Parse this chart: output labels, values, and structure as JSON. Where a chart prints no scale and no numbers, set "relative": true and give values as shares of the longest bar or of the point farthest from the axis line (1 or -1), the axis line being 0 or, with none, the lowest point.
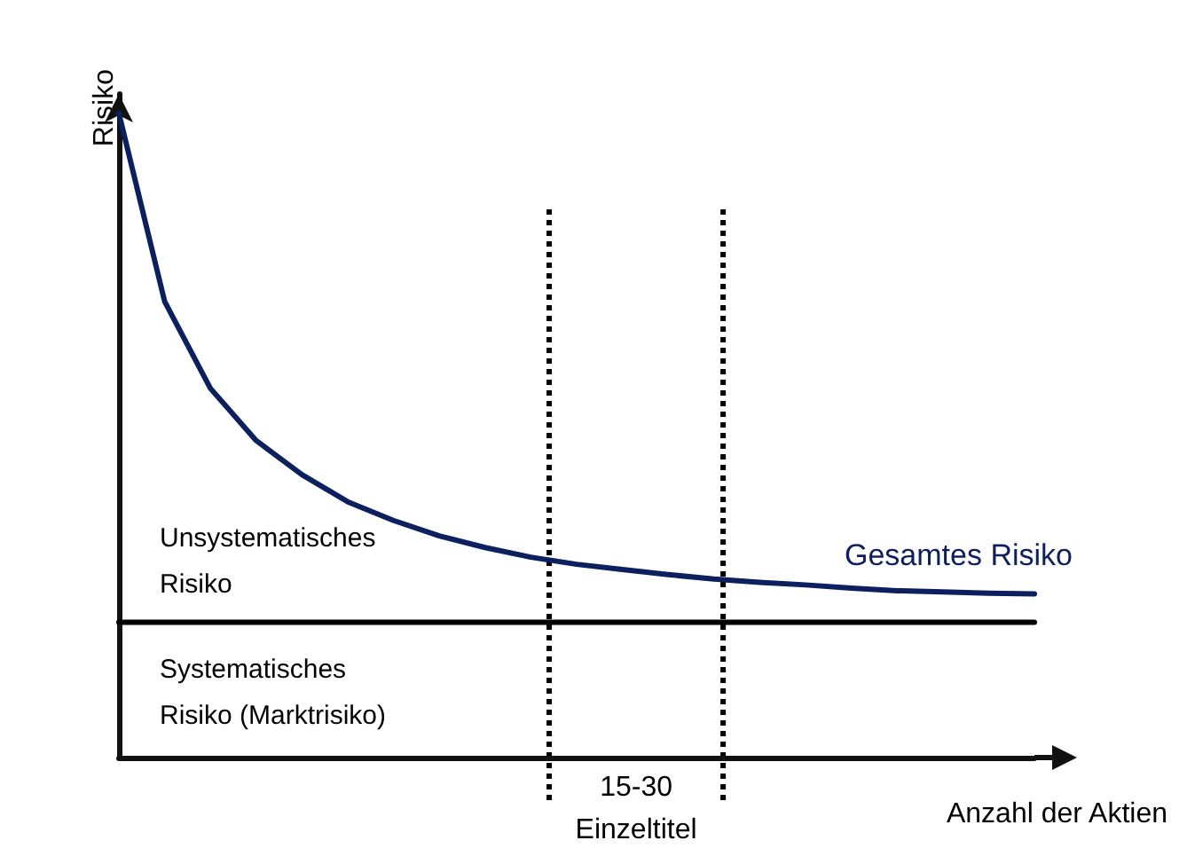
{
  "chart_data": {
    "type": "line",
    "relative": true,
    "ylabel": "Risiko",
    "xlabel": "Anzahl der Aktien",
    "grid": false,
    "legend": false,
    "marker": "none",
    "line_style": "solid",
    "categories": [
      null,
      null,
      null,
      null,
      null,
      null,
      null,
      null,
      null,
      null,
      null,
      null,
      null,
      null,
      null,
      null,
      null,
      null,
      null,
      null,
      null
    ],
    "series": [
      {
        "name": "Gesamtes Risiko",
        "color": "#0c1f5e",
        "values": [
          1.0,
          0.708,
          0.573,
          0.492,
          0.439,
          0.397,
          0.368,
          0.344,
          0.326,
          0.311,
          0.3,
          0.292,
          0.284,
          0.277,
          0.272,
          0.268,
          0.263,
          0.259,
          0.257,
          0.255,
          0.254
        ]
      },
      {
        "color": "#000000",
        "values": [
          0.21,
          0.21,
          0.21,
          0.21,
          0.21,
          0.21,
          0.21,
          0.21,
          0.21,
          0.21,
          0.21,
          0.21,
          0.21,
          0.21,
          0.21,
          0.21,
          0.21,
          0.21,
          0.21,
          0.21,
          0.21
        ]
      }
    ],
    "annotations": [
      "Unsystematisches\nRisiko",
      "Systematisches\nRisiko (Marktrisiko)",
      "15-30\nEinzeltitel"
    ]
  }
}
